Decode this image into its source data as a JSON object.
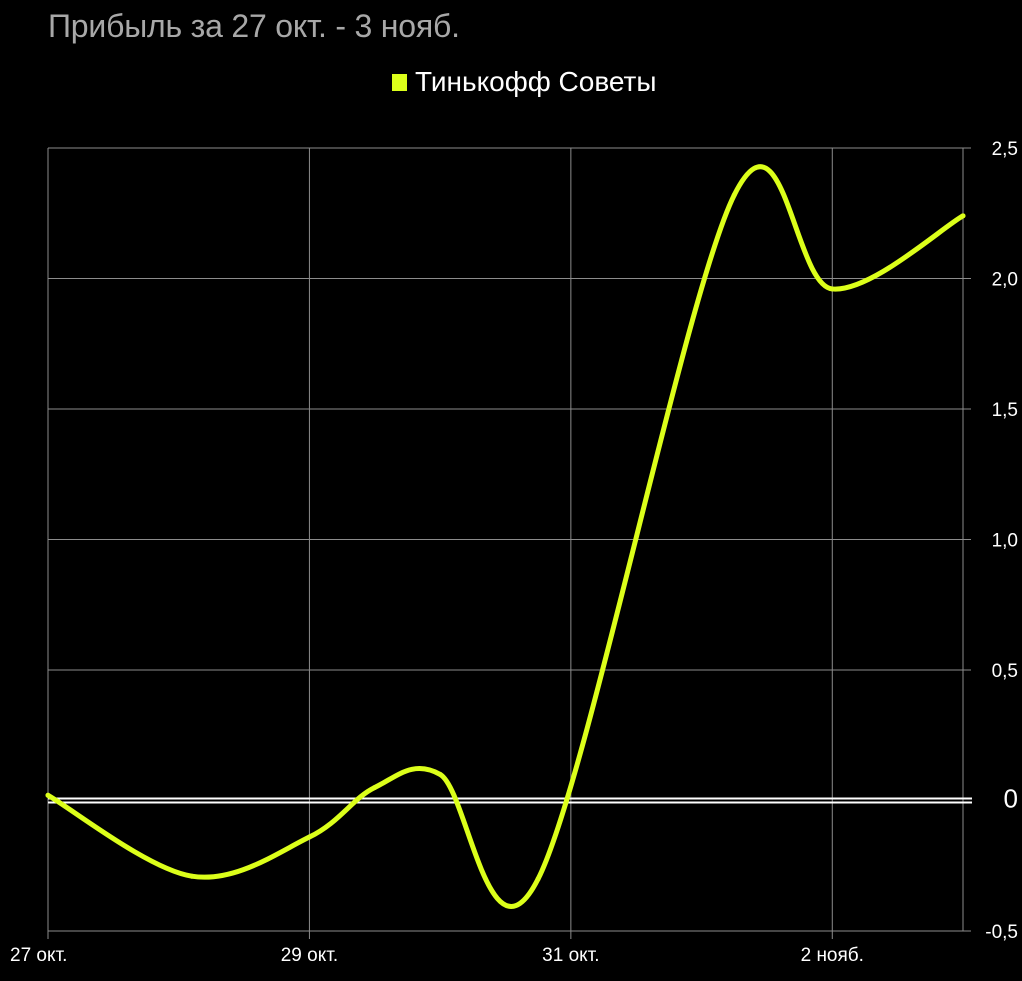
{
  "chart_data": {
    "type": "line",
    "title": "Прибыль за 27 окт. - 3 нояб.",
    "xlabel": "",
    "ylabel": "",
    "x_ticks": [
      "27 окт.",
      "29 окт.",
      "31 окт.",
      "2 нояб."
    ],
    "y_ticks": [
      "2,5",
      "2,0",
      "1,5",
      "1,0",
      "0,5",
      "0",
      "-0,5"
    ],
    "y_tick_values": [
      2.5,
      2.0,
      1.5,
      1.0,
      0.5,
      0,
      -0.5
    ],
    "ylim": [
      -0.5,
      2.5
    ],
    "x_range_days": [
      0,
      7
    ],
    "grid": true,
    "zero_line": true,
    "legend_position": "top",
    "smooth": true,
    "series": [
      {
        "name": "Тинькофф Советы",
        "color": "#dcff1a",
        "x_dates": [
          "27 окт.",
          "28 окт.",
          "29 окт.",
          "30 окт.",
          "30 окт.",
          "31 окт.",
          "1 нояб.",
          "2 нояб.",
          "3 нояб."
        ],
        "x": [
          0,
          1.1,
          2.0,
          2.5,
          3.0,
          3.75,
          5.25,
          6.0,
          7.0
        ],
        "y": [
          0.02,
          -0.29,
          -0.14,
          0.05,
          0.1,
          -0.3,
          2.32,
          1.96,
          2.24
        ]
      }
    ],
    "colors": {
      "background": "#000000",
      "grid": "#8c8c8c",
      "axis_text": "#ffffff",
      "title_text": "#a8a8a8",
      "zero_line": "#ffffff"
    }
  }
}
